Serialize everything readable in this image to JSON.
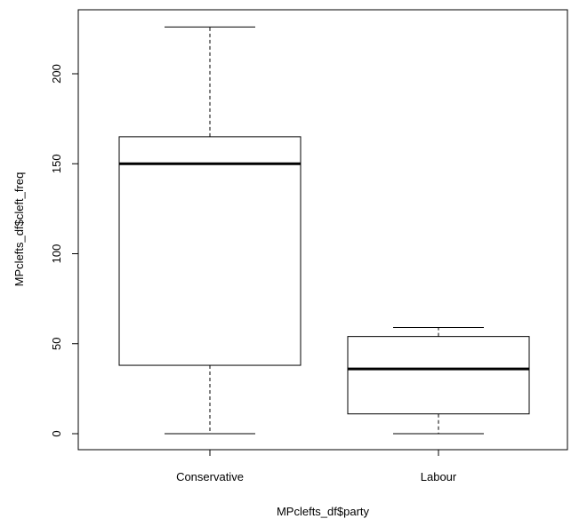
{
  "chart_data": {
    "type": "boxplot",
    "title": "",
    "xlabel": "MPclefts_df$party",
    "ylabel": "MPclefts_df$cleft_freq",
    "categories": [
      "Conservative",
      "Labour"
    ],
    "boxes": [
      {
        "name": "Conservative",
        "whisker_low": 0,
        "q1": 38,
        "median": 150,
        "q3": 165,
        "whisker_high": 226
      },
      {
        "name": "Labour",
        "whisker_low": 0,
        "q1": 11,
        "median": 36,
        "q3": 54,
        "whisker_high": 59
      }
    ],
    "yticks": [
      0,
      50,
      100,
      150,
      200
    ],
    "ylim": [
      -9,
      235
    ],
    "grid": false,
    "colors": {
      "box_fill": "#ffffff",
      "line": "#000000"
    }
  }
}
